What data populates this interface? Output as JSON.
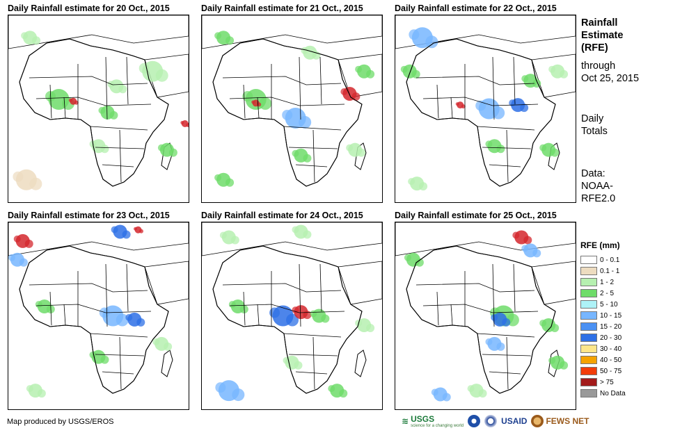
{
  "panels": [
    {
      "title": "Daily Rainfall estimate for 20 Oct., 2015",
      "rain": [
        [
          0.12,
          0.12,
          2,
          "#b6f0b0"
        ],
        [
          0.28,
          0.45,
          3,
          "#6fdc6a"
        ],
        [
          0.36,
          0.46,
          1,
          "#d4272d"
        ],
        [
          0.55,
          0.52,
          2,
          "#6fdc6a"
        ],
        [
          0.6,
          0.38,
          2,
          "#b6f0b0"
        ],
        [
          0.8,
          0.3,
          3,
          "#b6f0b0"
        ],
        [
          0.98,
          0.58,
          1,
          "#d4272d"
        ],
        [
          0.88,
          0.72,
          2,
          "#6fdc6a"
        ],
        [
          0.5,
          0.7,
          2,
          "#b6f0b0"
        ],
        [
          0.1,
          0.88,
          3,
          "#eddcc0"
        ]
      ]
    },
    {
      "title": "Daily Rainfall estimate for 21 Oct., 2015",
      "rain": [
        [
          0.12,
          0.12,
          2,
          "#6fdc6a"
        ],
        [
          0.3,
          0.45,
          3,
          "#6fdc6a"
        ],
        [
          0.3,
          0.47,
          1,
          "#d4272d"
        ],
        [
          0.52,
          0.55,
          3,
          "#77b6ff"
        ],
        [
          0.82,
          0.42,
          2,
          "#d4272d"
        ],
        [
          0.9,
          0.3,
          2,
          "#6fdc6a"
        ],
        [
          0.55,
          0.75,
          2,
          "#6fdc6a"
        ],
        [
          0.85,
          0.72,
          2,
          "#b6f0b0"
        ],
        [
          0.12,
          0.88,
          2,
          "#6fdc6a"
        ],
        [
          0.6,
          0.2,
          2,
          "#b6f0b0"
        ]
      ]
    },
    {
      "title": "Daily Rainfall estimate for 22 Oct., 2015",
      "rain": [
        [
          0.15,
          0.12,
          3,
          "#77b6ff"
        ],
        [
          0.08,
          0.3,
          2,
          "#6fdc6a"
        ],
        [
          0.36,
          0.48,
          1,
          "#d4272d"
        ],
        [
          0.52,
          0.5,
          3,
          "#77b6ff"
        ],
        [
          0.68,
          0.48,
          2,
          "#2e70e6"
        ],
        [
          0.75,
          0.35,
          2,
          "#6fdc6a"
        ],
        [
          0.9,
          0.3,
          2,
          "#b6f0b0"
        ],
        [
          0.55,
          0.7,
          2,
          "#6fdc6a"
        ],
        [
          0.85,
          0.72,
          2,
          "#6fdc6a"
        ],
        [
          0.12,
          0.9,
          2,
          "#b6f0b0"
        ]
      ]
    },
    {
      "title": "Daily Rainfall estimate for 23 Oct., 2015",
      "rain": [
        [
          0.08,
          0.1,
          2,
          "#d4272d"
        ],
        [
          0.05,
          0.2,
          2,
          "#77b6ff"
        ],
        [
          0.62,
          0.05,
          2,
          "#2e70e6"
        ],
        [
          0.72,
          0.04,
          1,
          "#d4272d"
        ],
        [
          0.2,
          0.45,
          2,
          "#6fdc6a"
        ],
        [
          0.58,
          0.5,
          3,
          "#77b6ff"
        ],
        [
          0.7,
          0.52,
          2,
          "#2e70e6"
        ],
        [
          0.85,
          0.65,
          2,
          "#b6f0b0"
        ],
        [
          0.5,
          0.72,
          2,
          "#6fdc6a"
        ],
        [
          0.15,
          0.9,
          2,
          "#b6f0b0"
        ]
      ]
    },
    {
      "title": "Daily Rainfall estimate for 24 Oct., 2015",
      "rain": [
        [
          0.15,
          0.08,
          2,
          "#b6f0b0"
        ],
        [
          0.55,
          0.05,
          2,
          "#b6f0b0"
        ],
        [
          0.2,
          0.45,
          2,
          "#6fdc6a"
        ],
        [
          0.45,
          0.5,
          3,
          "#2e70e6"
        ],
        [
          0.55,
          0.48,
          2,
          "#d4272d"
        ],
        [
          0.65,
          0.5,
          2,
          "#6fdc6a"
        ],
        [
          0.9,
          0.55,
          2,
          "#b6f0b0"
        ],
        [
          0.5,
          0.75,
          2,
          "#b6f0b0"
        ],
        [
          0.15,
          0.9,
          3,
          "#77b6ff"
        ],
        [
          0.75,
          0.9,
          2,
          "#6fdc6a"
        ]
      ]
    },
    {
      "title": "Daily Rainfall estimate for 25 Oct., 2015",
      "rain": [
        [
          0.7,
          0.08,
          2,
          "#d4272d"
        ],
        [
          0.75,
          0.15,
          2,
          "#77b6ff"
        ],
        [
          0.1,
          0.2,
          2,
          "#6fdc6a"
        ],
        [
          0.6,
          0.5,
          3,
          "#6fdc6a"
        ],
        [
          0.58,
          0.52,
          2,
          "#2e70e6"
        ],
        [
          0.85,
          0.55,
          2,
          "#6fdc6a"
        ],
        [
          0.55,
          0.65,
          2,
          "#77b6ff"
        ],
        [
          0.9,
          0.75,
          2,
          "#6fdc6a"
        ],
        [
          0.25,
          0.92,
          2,
          "#77b6ff"
        ],
        [
          0.45,
          0.9,
          2,
          "#b6f0b0"
        ]
      ]
    }
  ],
  "info": {
    "title_lines": [
      "Rainfall",
      "Estimate",
      "(RFE)"
    ],
    "through_lines": [
      "through",
      "Oct 25, 2015"
    ],
    "totals_lines": [
      "Daily",
      "Totals"
    ],
    "data_lines": [
      "Data:",
      "NOAA-",
      "RFE2.0"
    ]
  },
  "legend": {
    "title": "RFE (mm)",
    "items": [
      {
        "label": "0 - 0.1",
        "color": "#ffffff"
      },
      {
        "label": "0.1 - 1",
        "color": "#eddcc0"
      },
      {
        "label": "1 - 2",
        "color": "#b6f0b0"
      },
      {
        "label": "2 - 5",
        "color": "#6fdc6a"
      },
      {
        "label": "5 - 10",
        "color": "#aef2f7"
      },
      {
        "label": "10 - 15",
        "color": "#77b6ff"
      },
      {
        "label": "15 - 20",
        "color": "#4b91f3"
      },
      {
        "label": "20 - 30",
        "color": "#2e70e6"
      },
      {
        "label": "30 - 40",
        "color": "#fde68a"
      },
      {
        "label": "40 - 50",
        "color": "#f5a300"
      },
      {
        "label": "50 - 75",
        "color": "#f23d0a"
      },
      {
        "label": "> 75",
        "color": "#a31b1b"
      },
      {
        "label": "No Data",
        "color": "#999999"
      }
    ]
  },
  "footer": {
    "credit": "Map produced by USGS/EROS",
    "logos": {
      "usgs": "USGS",
      "usgs_tagline": "science for a changing world",
      "usaid": "USAID",
      "fews": "FEWS NET"
    }
  }
}
